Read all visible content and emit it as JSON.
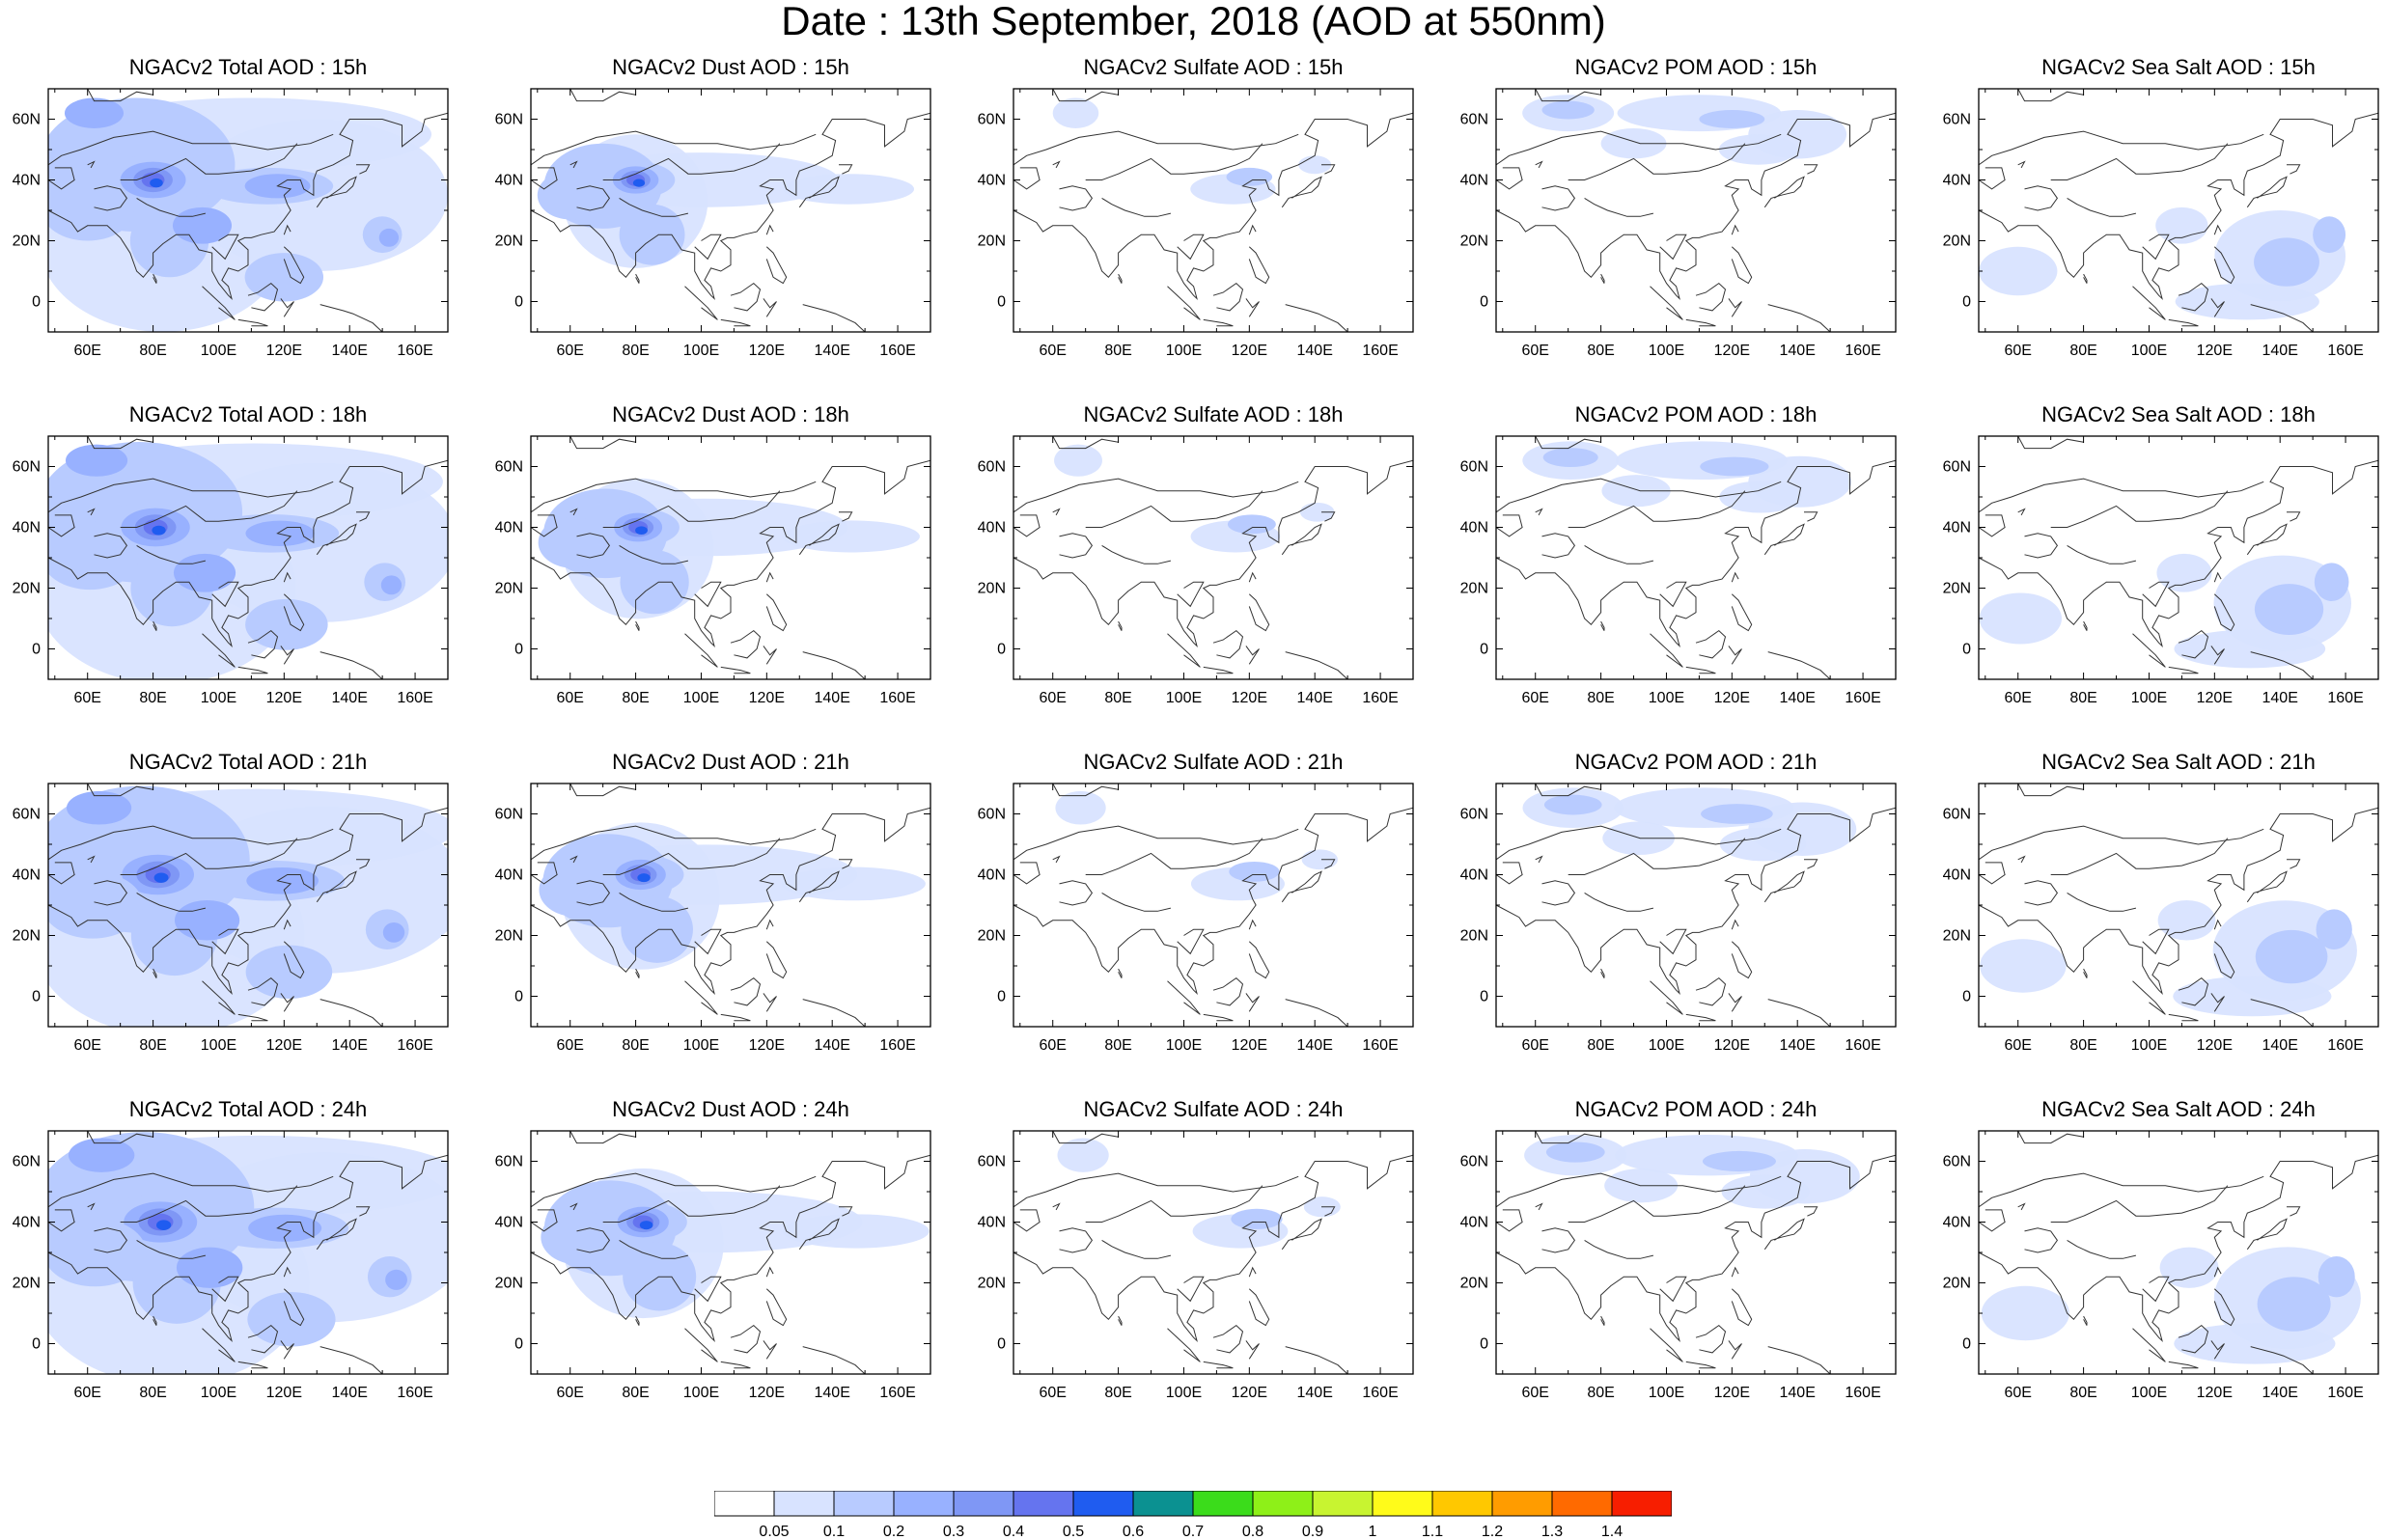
{
  "title": "Date : 13th September, 2018 (AOD at 550nm)",
  "map": {
    "lon_range": [
      48,
      170
    ],
    "lat_range": [
      -10,
      70
    ],
    "lon_ticks": [
      "60E",
      "80E",
      "100E",
      "120E",
      "140E",
      "160E"
    ],
    "lat_ticks": [
      "60N",
      "40N",
      "20N",
      "0"
    ]
  },
  "panels": [
    {
      "title": "NGACv2 Total AOD : 15h",
      "species": "total",
      "hour": 15
    },
    {
      "title": "NGACv2 Dust AOD : 15h",
      "species": "dust",
      "hour": 15
    },
    {
      "title": "NGACv2 Sulfate AOD : 15h",
      "species": "sulfate",
      "hour": 15
    },
    {
      "title": "NGACv2 POM AOD : 15h",
      "species": "pom",
      "hour": 15
    },
    {
      "title": "NGACv2 Sea Salt AOD : 15h",
      "species": "seasalt",
      "hour": 15
    },
    {
      "title": "NGACv2 Total AOD : 18h",
      "species": "total",
      "hour": 18
    },
    {
      "title": "NGACv2 Dust AOD : 18h",
      "species": "dust",
      "hour": 18
    },
    {
      "title": "NGACv2 Sulfate AOD : 18h",
      "species": "sulfate",
      "hour": 18
    },
    {
      "title": "NGACv2 POM AOD : 18h",
      "species": "pom",
      "hour": 18
    },
    {
      "title": "NGACv2 Sea Salt AOD : 18h",
      "species": "seasalt",
      "hour": 18
    },
    {
      "title": "NGACv2 Total AOD : 21h",
      "species": "total",
      "hour": 21
    },
    {
      "title": "NGACv2 Dust AOD : 21h",
      "species": "dust",
      "hour": 21
    },
    {
      "title": "NGACv2 Sulfate AOD : 21h",
      "species": "sulfate",
      "hour": 21
    },
    {
      "title": "NGACv2 POM AOD : 21h",
      "species": "pom",
      "hour": 21
    },
    {
      "title": "NGACv2 Sea Salt AOD : 21h",
      "species": "seasalt",
      "hour": 21
    },
    {
      "title": "NGACv2 Total AOD : 24h",
      "species": "total",
      "hour": 24
    },
    {
      "title": "NGACv2 Dust AOD : 24h",
      "species": "dust",
      "hour": 24
    },
    {
      "title": "NGACv2 Sulfate AOD : 24h",
      "species": "sulfate",
      "hour": 24
    },
    {
      "title": "NGACv2 POM AOD : 24h",
      "species": "pom",
      "hour": 24
    },
    {
      "title": "NGACv2 Sea Salt  AOD : 24h",
      "species": "seasalt",
      "hour": 24
    }
  ],
  "colorbar": {
    "labels": [
      "0.05",
      "0.1",
      "0.2",
      "0.3",
      "0.4",
      "0.5",
      "0.6",
      "0.7",
      "0.8",
      "0.9",
      "1",
      "1.1",
      "1.2",
      "1.3",
      "1.4"
    ],
    "colors": [
      "#ffffff",
      "#d8e3ff",
      "#b8cbff",
      "#98b1ff",
      "#7f97f5",
      "#6574ef",
      "#1f5cf0",
      "#0b9191",
      "#3bdc1b",
      "#8ef018",
      "#c8f430",
      "#fffb1a",
      "#ffc800",
      "#ff9c00",
      "#ff6a00",
      "#f71e00"
    ]
  }
}
